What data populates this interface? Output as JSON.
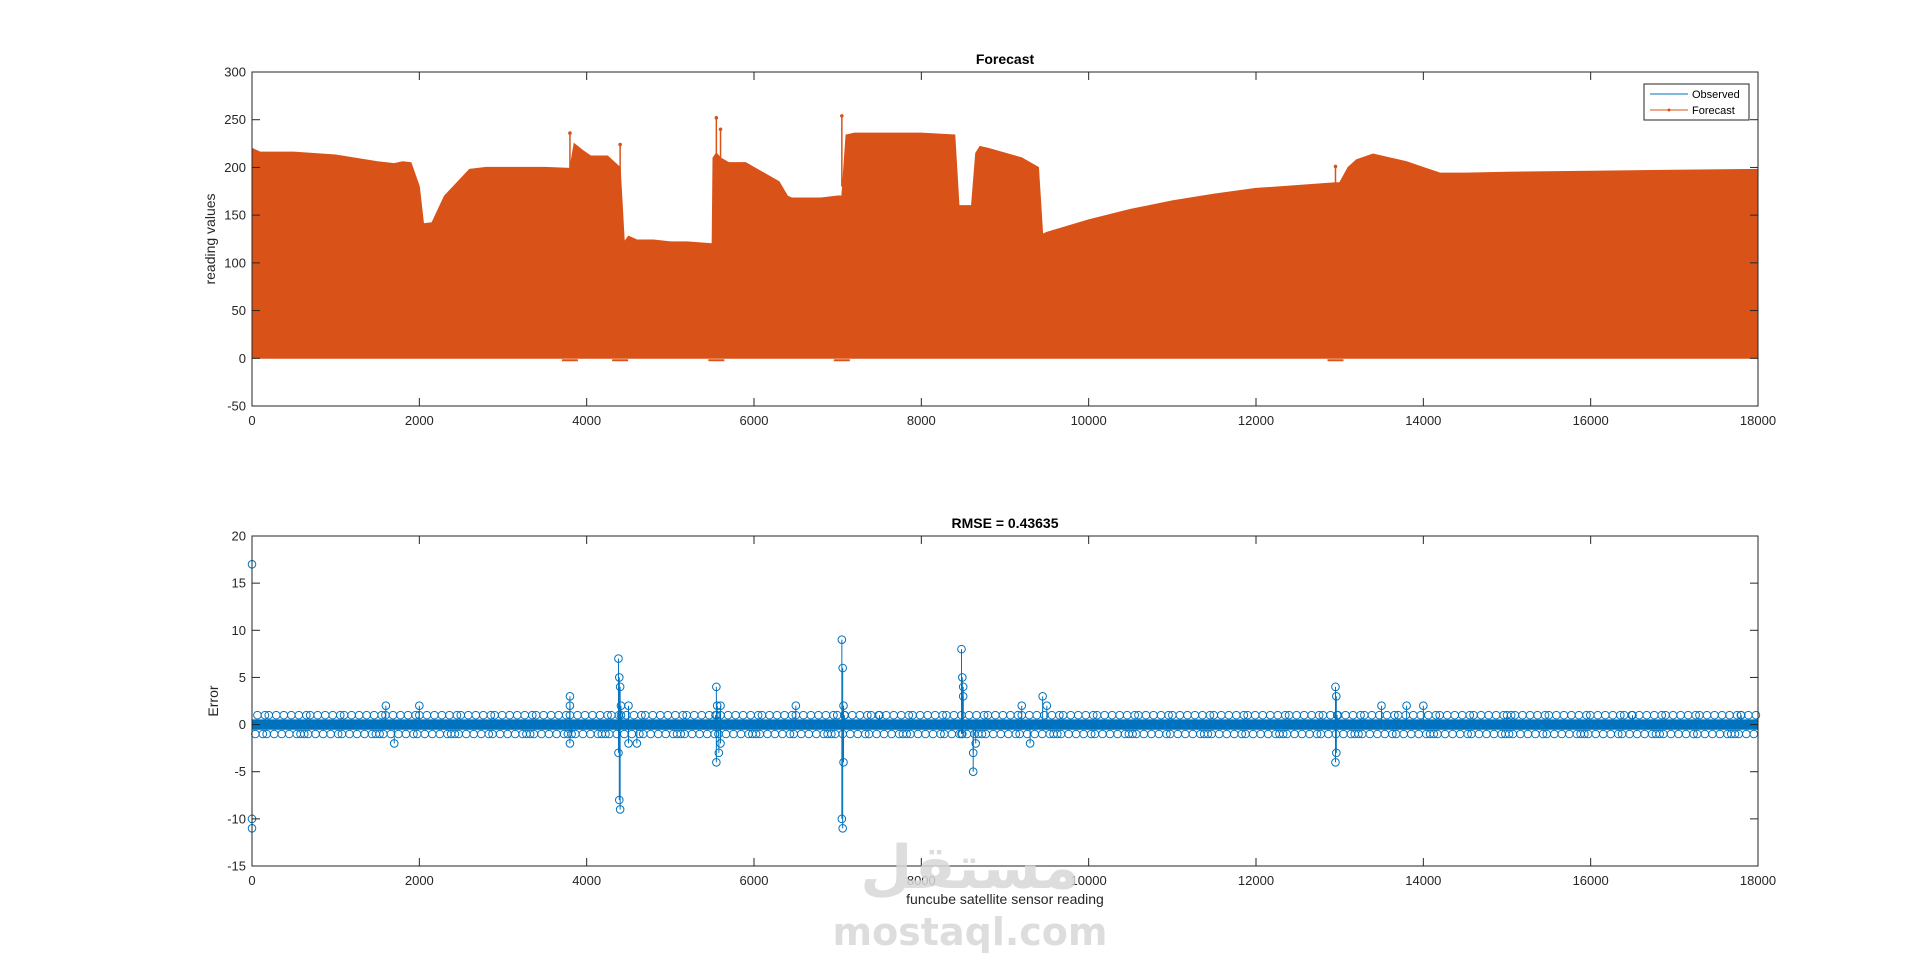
{
  "chart_data": [
    {
      "type": "area",
      "title": "Forecast",
      "xlabel": "",
      "ylabel": "reading values",
      "xlim": [
        0,
        18000
      ],
      "ylim": [
        -50,
        300
      ],
      "xticks": [
        "0",
        "2000",
        "4000",
        "6000",
        "8000",
        "10000",
        "12000",
        "14000",
        "16000",
        "18000"
      ],
      "yticks": [
        "300",
        "250",
        "200",
        "150",
        "100",
        "50",
        "0",
        "-50"
      ],
      "grid": false,
      "legend": {
        "placement": "top-right",
        "entries": [
          "Observed",
          "Forecast"
        ]
      },
      "colors": {
        "observed": "#0072bd",
        "forecast": "#d95319"
      },
      "series": [
        {
          "name": "Observed",
          "x": [
            0
          ],
          "y": [
            0
          ]
        },
        {
          "name": "Forecast",
          "envelope_min": 0,
          "x": [
            0,
            100,
            500,
            1000,
            1500,
            1700,
            1800,
            1900,
            2000,
            2050,
            2150,
            2300,
            2600,
            2800,
            3000,
            3500,
            3800,
            3850,
            3950,
            4050,
            4150,
            4250,
            4400,
            4450,
            4500,
            4600,
            4800,
            5000,
            5200,
            5500,
            5510,
            5550,
            5600,
            5700,
            5800,
            5900,
            6000,
            6100,
            6200,
            6300,
            6400,
            6450,
            6600,
            6800,
            7000,
            7050,
            7100,
            7200,
            7500,
            8000,
            8400,
            8450,
            8500,
            8600,
            8650,
            8700,
            8800,
            9000,
            9200,
            9400,
            9450,
            9500,
            10000,
            10500,
            11000,
            11500,
            12000,
            12500,
            12950,
            13000,
            13100,
            13200,
            13400,
            13500,
            13800,
            14000,
            14200,
            14500,
            15000,
            16000,
            17000,
            18000
          ],
          "y": [
            220,
            216,
            216,
            213,
            206,
            204,
            206,
            205,
            180,
            141,
            142,
            170,
            198,
            200,
            200,
            200,
            199,
            225,
            218,
            212,
            212,
            212,
            200,
            122,
            128,
            124,
            124,
            122,
            122,
            120,
            210,
            215,
            210,
            205,
            205,
            205,
            200,
            195,
            190,
            185,
            170,
            168,
            168,
            168,
            170,
            170,
            234,
            236,
            236,
            236,
            234,
            160,
            160,
            160,
            215,
            222,
            220,
            215,
            210,
            200,
            130,
            132,
            145,
            156,
            165,
            172,
            178,
            181,
            184,
            184,
            200,
            208,
            214,
            212,
            206,
            200,
            194,
            194,
            195,
            196,
            197,
            198
          ]
        }
      ],
      "spikes": [
        {
          "x": 3800,
          "y": 236
        },
        {
          "x": 4400,
          "y": 224
        },
        {
          "x": 5550,
          "y": 252
        },
        {
          "x": 5600,
          "y": 240
        },
        {
          "x": 7050,
          "y": 254
        },
        {
          "x": 12950,
          "y": 201
        }
      ],
      "dips": [
        {
          "x": 3800,
          "y": -2
        },
        {
          "x": 4400,
          "y": -2
        },
        {
          "x": 5550,
          "y": -2
        },
        {
          "x": 7050,
          "y": -2
        },
        {
          "x": 12950,
          "y": -2
        }
      ]
    },
    {
      "type": "scatter",
      "title": "RMSE = 0.43635",
      "xlabel": "funcube satellite sensor reading",
      "ylabel": "Error",
      "xlim": [
        0,
        18000
      ],
      "ylim": [
        -15,
        20
      ],
      "xticks": [
        "0",
        "2000",
        "4000",
        "6000",
        "8000",
        "10000",
        "12000",
        "14000",
        "16000",
        "18000"
      ],
      "yticks": [
        "20",
        "15",
        "10",
        "5",
        "0",
        "-5",
        "-10",
        "-15"
      ],
      "grid": false,
      "color": "#0072bd",
      "series": [
        {
          "name": "",
          "x": [
            0,
            0,
            0,
            50,
            3800,
            3800,
            3800,
            3820,
            4380,
            4380,
            4390,
            4390,
            4400,
            4400,
            4410,
            4410,
            4500,
            4500,
            5550,
            5550,
            5560,
            5580,
            5600,
            5600,
            5540,
            7050,
            7050,
            7060,
            7060,
            7070,
            7070,
            7080,
            8480,
            8480,
            8490,
            8490,
            8500,
            8500,
            8620,
            8620,
            8650,
            9300,
            9450,
            9500,
            12950,
            12950,
            12960,
            12960,
            12970,
            13500,
            13800,
            1600,
            1700,
            2000,
            4600,
            6500,
            7500,
            9200,
            14000,
            15000,
            16500,
            17800
          ],
          "y": [
            17,
            -10,
            -11,
            0,
            3,
            2,
            -2,
            -1,
            7,
            -3,
            5,
            -8,
            4,
            -9,
            2,
            1,
            2,
            -2,
            4,
            -4,
            2,
            -3,
            2,
            -2,
            1,
            9,
            -10,
            6,
            -11,
            2,
            -4,
            1,
            8,
            -1,
            5,
            -1,
            4,
            3,
            -3,
            -5,
            -2,
            -2,
            3,
            2,
            4,
            -4,
            3,
            -3,
            1,
            2,
            2,
            2,
            -2,
            2,
            -2,
            2,
            1,
            2,
            2,
            1,
            1,
            1
          ],
          "baseline": {
            "y_values": [
              1,
              0,
              -1
            ],
            "x_range": [
              0,
              18000
            ]
          }
        }
      ]
    }
  ],
  "watermark": {
    "arabic": "مستقل",
    "domain": "mostaql.com"
  }
}
